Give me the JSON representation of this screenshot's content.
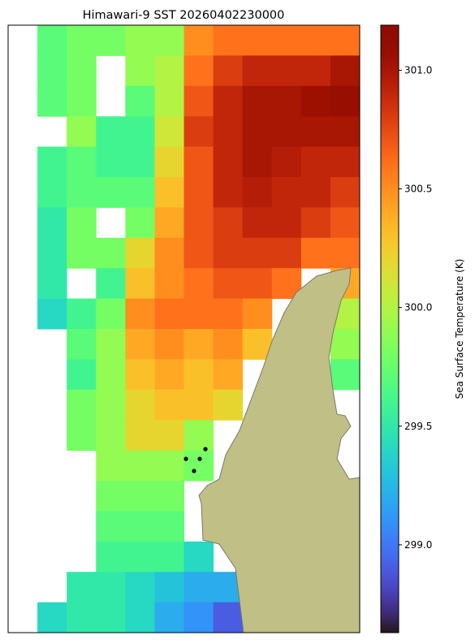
{
  "chart_data": {
    "type": "heatmap",
    "title": "Himawari-9 SST 20260402230000",
    "colormap": "turbo",
    "values": [
      [
        null,
        299.7,
        299.8,
        299.8,
        299.9,
        299.9,
        300.5,
        300.6,
        300.6,
        300.6,
        300.6,
        300.6
      ],
      [
        null,
        299.7,
        299.8,
        null,
        299.9,
        300.0,
        300.6,
        300.8,
        300.9,
        300.9,
        300.9,
        301.0
      ],
      [
        null,
        299.7,
        299.8,
        null,
        299.7,
        300.0,
        300.7,
        300.9,
        301.0,
        301.0,
        301.05,
        301.08
      ],
      [
        null,
        null,
        299.9,
        299.6,
        299.6,
        300.1,
        300.8,
        300.9,
        301.0,
        301.0,
        301.0,
        301.0
      ],
      [
        null,
        299.6,
        299.7,
        299.6,
        299.6,
        300.2,
        300.7,
        300.9,
        301.0,
        300.95,
        300.9,
        300.9
      ],
      [
        null,
        299.6,
        299.7,
        299.7,
        299.7,
        300.3,
        300.7,
        300.9,
        300.95,
        300.9,
        300.9,
        300.8
      ],
      [
        null,
        299.5,
        299.8,
        null,
        299.8,
        300.4,
        300.7,
        300.8,
        300.9,
        300.9,
        300.8,
        300.7
      ],
      [
        null,
        299.5,
        299.8,
        299.8,
        300.2,
        300.5,
        300.7,
        300.8,
        300.8,
        300.8,
        300.6,
        300.6
      ],
      [
        null,
        299.5,
        null,
        299.6,
        300.3,
        300.5,
        300.6,
        300.7,
        300.7,
        300.6,
        null,
        300.4
      ],
      [
        null,
        299.4,
        299.6,
        299.8,
        300.5,
        300.6,
        300.6,
        300.6,
        300.5,
        null,
        null,
        300.0
      ],
      [
        null,
        null,
        299.7,
        299.9,
        300.4,
        300.5,
        300.4,
        300.5,
        300.3,
        null,
        null,
        299.9
      ],
      [
        null,
        null,
        299.6,
        299.9,
        300.3,
        300.4,
        300.3,
        300.4,
        null,
        null,
        null,
        299.7
      ],
      [
        null,
        null,
        299.8,
        299.9,
        300.2,
        300.3,
        300.3,
        300.2,
        null,
        null,
        null,
        null
      ],
      [
        null,
        null,
        299.8,
        299.9,
        300.2,
        300.2,
        299.9,
        null,
        null,
        null,
        null,
        null
      ],
      [
        null,
        null,
        null,
        299.9,
        299.9,
        299.9,
        299.8,
        null,
        null,
        null,
        null,
        null
      ],
      [
        null,
        null,
        null,
        299.8,
        299.8,
        299.8,
        null,
        null,
        null,
        null,
        null,
        null
      ],
      [
        null,
        null,
        null,
        299.7,
        299.7,
        299.7,
        null,
        null,
        null,
        null,
        null,
        null
      ],
      [
        null,
        null,
        null,
        299.6,
        299.6,
        299.6,
        299.4,
        null,
        null,
        null,
        null,
        null
      ],
      [
        null,
        null,
        299.5,
        299.5,
        299.4,
        299.3,
        299.2,
        299.2,
        null,
        null,
        null,
        null
      ],
      [
        null,
        299.4,
        299.5,
        299.5,
        299.4,
        299.2,
        299.1,
        298.9,
        null,
        null,
        null,
        null
      ]
    ],
    "colorbar": {
      "label": "Sea Surface Temperature (K)",
      "lim": [
        298.63,
        301.19
      ],
      "ticks": [
        {
          "value": 299.0,
          "label": "299.0"
        },
        {
          "value": 299.5,
          "label": "299.5"
        },
        {
          "value": 300.0,
          "label": "300.0"
        },
        {
          "value": 300.5,
          "label": "300.5"
        },
        {
          "value": 301.0,
          "label": "301.0"
        }
      ]
    }
  }
}
